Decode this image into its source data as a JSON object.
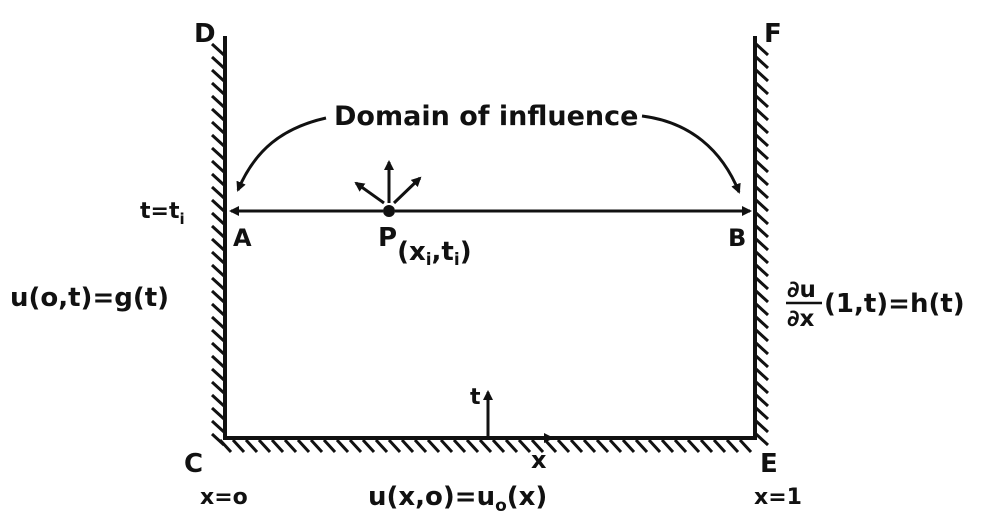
{
  "labels": {
    "D": "D",
    "F": "F",
    "C": "C",
    "E": "E",
    "A": "A",
    "B": "B",
    "title": "Domain of influence",
    "t_eq": "t=t",
    "t_eq_sub": "i",
    "left_bc": "u(o,t)=g(t)",
    "right_bc_num": "∂u",
    "right_bc_den": "∂x",
    "right_bc_rest": "(1,t)=h(t)",
    "P_main": "P",
    "P_paren_open": "(x",
    "P_sub1": "i",
    "P_comma": ",t",
    "P_sub2": "i",
    "P_paren_close": ")",
    "t_axis": "t",
    "x_axis": "x",
    "x0": "x=o",
    "x1": "x=1",
    "initial": "u(x,o)=u",
    "initial_sub": "o",
    "initial_rest": "(x)"
  },
  "colors": {
    "ink": "#111111",
    "background": "#ffffff"
  }
}
